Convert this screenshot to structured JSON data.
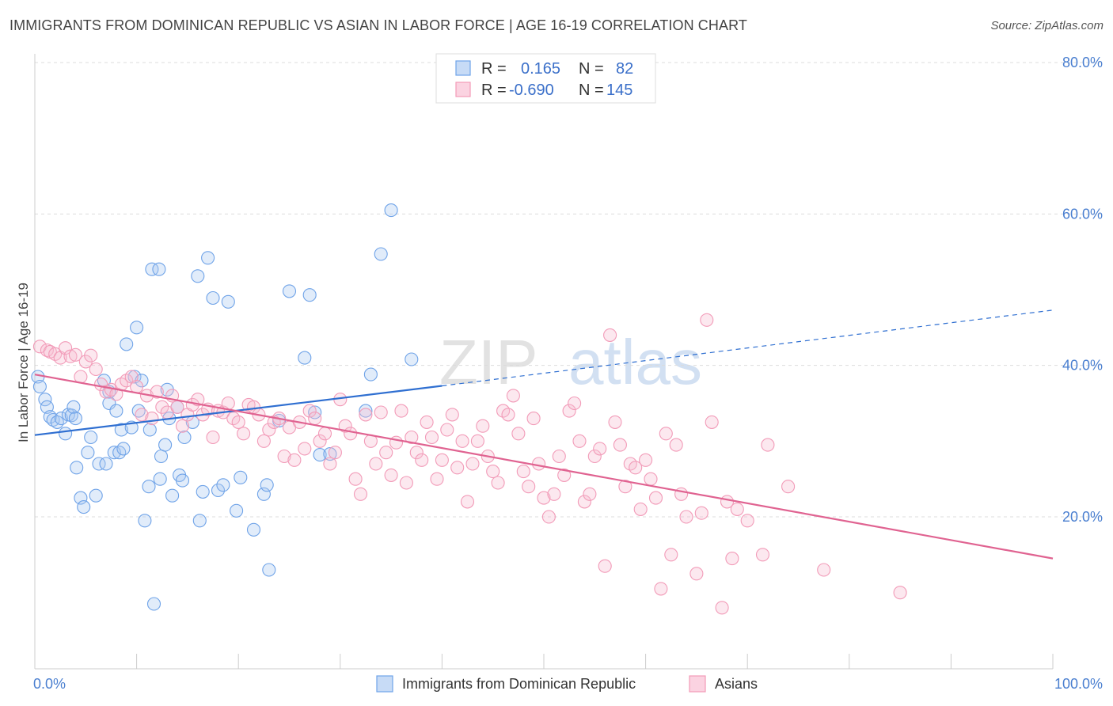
{
  "header": {
    "title": "IMMIGRANTS FROM DOMINICAN REPUBLIC VS ASIAN IN LABOR FORCE | AGE 16-19 CORRELATION CHART",
    "source": "Source: ZipAtlas.com"
  },
  "watermark": {
    "zip": "ZIP",
    "atlas": "atlas"
  },
  "legend": {
    "rows": [
      {
        "r_label": "R =",
        "r_value": "0.165",
        "n_label": "N =",
        "n_value": "82"
      },
      {
        "r_label": "R =",
        "r_value": "-0.690",
        "n_label": "N =",
        "n_value": "145"
      }
    ]
  },
  "bottom_legend": {
    "items": [
      "Immigrants from Dominican Republic",
      "Asians"
    ]
  },
  "chart_data": {
    "type": "scatter",
    "ylabel": "In Labor Force | Age 16-19",
    "xlabel": "",
    "xlim": [
      0,
      100
    ],
    "ylim": [
      0,
      85
    ],
    "x_tick_labels": [
      "0.0%",
      "100.0%"
    ],
    "y_ticks": [
      20,
      40,
      60,
      80
    ],
    "y_tick_labels": [
      "20.0%",
      "40.0%",
      "60.0%",
      "80.0%"
    ],
    "grid": true,
    "legend_position": "top-center",
    "colors": {
      "blue": "#6fa3e8",
      "blue_line": "#2f6fd1",
      "pink": "#f29bb8",
      "pink_line": "#e06391"
    },
    "series": [
      {
        "name": "Immigrants from Dominican Republic",
        "color": "#6fa3e8",
        "trend": {
          "x": [
            0,
            40
          ],
          "y": [
            30.8,
            37.3
          ],
          "dashed_extension_to": [
            100,
            47.3
          ]
        },
        "points": [
          [
            0.3,
            38.5
          ],
          [
            0.5,
            37.2
          ],
          [
            1.0,
            35.5
          ],
          [
            1.2,
            34.5
          ],
          [
            1.5,
            33.2
          ],
          [
            1.8,
            32.8
          ],
          [
            2.2,
            32.5
          ],
          [
            2.6,
            33.0
          ],
          [
            3.0,
            31.0
          ],
          [
            3.3,
            33.5
          ],
          [
            3.6,
            33.4
          ],
          [
            3.8,
            34.5
          ],
          [
            4.0,
            33.0
          ],
          [
            4.1,
            26.5
          ],
          [
            4.5,
            22.5
          ],
          [
            4.8,
            21.3
          ],
          [
            5.2,
            28.5
          ],
          [
            5.5,
            30.5
          ],
          [
            6.0,
            22.8
          ],
          [
            6.3,
            27.0
          ],
          [
            6.8,
            38.0
          ],
          [
            7.0,
            27.0
          ],
          [
            7.3,
            36.5
          ],
          [
            7.3,
            35.0
          ],
          [
            7.8,
            28.5
          ],
          [
            8.0,
            34.0
          ],
          [
            8.3,
            28.5
          ],
          [
            8.5,
            31.5
          ],
          [
            8.7,
            29.0
          ],
          [
            9.0,
            42.8
          ],
          [
            9.5,
            31.8
          ],
          [
            9.8,
            38.5
          ],
          [
            10.0,
            45.0
          ],
          [
            10.2,
            34.0
          ],
          [
            10.5,
            38.0
          ],
          [
            10.8,
            19.5
          ],
          [
            11.2,
            24.0
          ],
          [
            11.3,
            31.5
          ],
          [
            11.5,
            52.7
          ],
          [
            11.7,
            8.5
          ],
          [
            12.2,
            52.7
          ],
          [
            12.3,
            25.0
          ],
          [
            12.4,
            28.0
          ],
          [
            12.8,
            29.5
          ],
          [
            13.0,
            36.8
          ],
          [
            13.2,
            33.0
          ],
          [
            13.5,
            22.8
          ],
          [
            14.0,
            34.5
          ],
          [
            14.2,
            25.5
          ],
          [
            14.5,
            24.8
          ],
          [
            14.7,
            30.5
          ],
          [
            15.5,
            32.5
          ],
          [
            16.0,
            51.8
          ],
          [
            16.2,
            19.5
          ],
          [
            16.5,
            23.3
          ],
          [
            17.0,
            54.2
          ],
          [
            17.5,
            48.9
          ],
          [
            18.0,
            23.5
          ],
          [
            18.5,
            24.2
          ],
          [
            19.0,
            48.4
          ],
          [
            19.8,
            20.8
          ],
          [
            20.2,
            25.2
          ],
          [
            21.5,
            18.3
          ],
          [
            22.5,
            23.0
          ],
          [
            22.8,
            24.2
          ],
          [
            23.0,
            13.0
          ],
          [
            24.0,
            32.7
          ],
          [
            25.0,
            49.8
          ],
          [
            26.5,
            41.0
          ],
          [
            27.0,
            49.3
          ],
          [
            27.5,
            33.8
          ],
          [
            28.0,
            28.2
          ],
          [
            29.0,
            28.3
          ],
          [
            32.5,
            34.0
          ],
          [
            33.0,
            38.8
          ],
          [
            34.0,
            54.7
          ],
          [
            35.0,
            60.5
          ],
          [
            37.0,
            40.8
          ]
        ]
      },
      {
        "name": "Asians",
        "color": "#f29bb8",
        "trend": {
          "x": [
            0,
            100
          ],
          "y": [
            38.8,
            14.5
          ]
        },
        "points": [
          [
            0.5,
            42.5
          ],
          [
            1.2,
            42.0
          ],
          [
            1.5,
            41.8
          ],
          [
            2.0,
            41.5
          ],
          [
            2.5,
            41.0
          ],
          [
            3.0,
            42.3
          ],
          [
            3.5,
            41.2
          ],
          [
            4.0,
            41.4
          ],
          [
            4.5,
            38.5
          ],
          [
            5.0,
            40.5
          ],
          [
            5.5,
            41.3
          ],
          [
            6.0,
            39.5
          ],
          [
            6.5,
            37.5
          ],
          [
            7.0,
            36.5
          ],
          [
            7.5,
            36.8
          ],
          [
            8.0,
            36.2
          ],
          [
            8.5,
            37.5
          ],
          [
            9.0,
            38.0
          ],
          [
            9.5,
            38.5
          ],
          [
            10.0,
            37.2
          ],
          [
            10.5,
            33.5
          ],
          [
            11.0,
            36.0
          ],
          [
            11.5,
            33.0
          ],
          [
            12.0,
            36.5
          ],
          [
            12.5,
            34.5
          ],
          [
            13.0,
            33.8
          ],
          [
            13.5,
            36.0
          ],
          [
            14.0,
            34.5
          ],
          [
            14.5,
            32.0
          ],
          [
            15.0,
            33.5
          ],
          [
            15.5,
            34.8
          ],
          [
            16.0,
            35.5
          ],
          [
            16.5,
            33.5
          ],
          [
            17.0,
            34.2
          ],
          [
            17.5,
            30.5
          ],
          [
            18.0,
            34.0
          ],
          [
            18.5,
            33.8
          ],
          [
            19.0,
            35.0
          ],
          [
            19.5,
            33.0
          ],
          [
            20.0,
            32.5
          ],
          [
            20.5,
            31.0
          ],
          [
            21.0,
            34.8
          ],
          [
            21.5,
            34.5
          ],
          [
            22.0,
            33.5
          ],
          [
            22.5,
            30.0
          ],
          [
            23.0,
            31.5
          ],
          [
            23.5,
            32.5
          ],
          [
            24.0,
            33.0
          ],
          [
            24.5,
            28.0
          ],
          [
            25.0,
            31.8
          ],
          [
            25.5,
            27.5
          ],
          [
            26.0,
            32.5
          ],
          [
            26.5,
            29.0
          ],
          [
            27.0,
            34.0
          ],
          [
            27.5,
            33.0
          ],
          [
            28.0,
            30.0
          ],
          [
            28.5,
            31.0
          ],
          [
            29.0,
            27.0
          ],
          [
            29.5,
            28.5
          ],
          [
            30.0,
            35.5
          ],
          [
            30.5,
            32.0
          ],
          [
            31.0,
            31.0
          ],
          [
            31.5,
            25.0
          ],
          [
            32.0,
            23.0
          ],
          [
            32.5,
            33.5
          ],
          [
            33.0,
            30.0
          ],
          [
            33.5,
            27.0
          ],
          [
            34.0,
            33.8
          ],
          [
            34.5,
            28.5
          ],
          [
            35.0,
            25.5
          ],
          [
            35.5,
            29.8
          ],
          [
            36.0,
            34.0
          ],
          [
            36.5,
            24.5
          ],
          [
            37.0,
            30.5
          ],
          [
            37.5,
            28.5
          ],
          [
            38.0,
            27.5
          ],
          [
            38.5,
            32.5
          ],
          [
            39.0,
            30.5
          ],
          [
            39.5,
            25.0
          ],
          [
            40.0,
            27.5
          ],
          [
            40.5,
            31.5
          ],
          [
            41.0,
            33.5
          ],
          [
            41.5,
            26.5
          ],
          [
            42.0,
            30.0
          ],
          [
            42.5,
            22.0
          ],
          [
            43.0,
            27.0
          ],
          [
            43.5,
            30.0
          ],
          [
            44.0,
            32.0
          ],
          [
            44.5,
            28.0
          ],
          [
            45.0,
            26.0
          ],
          [
            45.5,
            24.5
          ],
          [
            46.0,
            34.0
          ],
          [
            46.5,
            33.5
          ],
          [
            47.0,
            36.0
          ],
          [
            47.5,
            31.0
          ],
          [
            48.0,
            26.0
          ],
          [
            48.5,
            24.0
          ],
          [
            49.0,
            33.0
          ],
          [
            49.5,
            27.0
          ],
          [
            50.0,
            22.5
          ],
          [
            50.5,
            20.0
          ],
          [
            51.0,
            23.0
          ],
          [
            51.5,
            28.0
          ],
          [
            52.0,
            25.5
          ],
          [
            52.5,
            34.0
          ],
          [
            53.0,
            35.0
          ],
          [
            53.5,
            30.0
          ],
          [
            54.0,
            22.0
          ],
          [
            54.5,
            23.0
          ],
          [
            55.0,
            28.0
          ],
          [
            55.5,
            29.0
          ],
          [
            56.0,
            13.5
          ],
          [
            56.5,
            44.0
          ],
          [
            57.0,
            32.5
          ],
          [
            57.5,
            29.5
          ],
          [
            58.0,
            24.0
          ],
          [
            58.5,
            27.0
          ],
          [
            59.0,
            26.5
          ],
          [
            59.5,
            21.0
          ],
          [
            60.0,
            27.5
          ],
          [
            60.5,
            25.0
          ],
          [
            61.0,
            22.5
          ],
          [
            61.5,
            10.5
          ],
          [
            62.0,
            31.0
          ],
          [
            62.5,
            15.0
          ],
          [
            63.0,
            29.5
          ],
          [
            63.5,
            23.0
          ],
          [
            64.0,
            20.0
          ],
          [
            65.0,
            12.5
          ],
          [
            65.5,
            20.5
          ],
          [
            66.0,
            46.0
          ],
          [
            66.5,
            32.5
          ],
          [
            67.5,
            8.0
          ],
          [
            68.0,
            22.0
          ],
          [
            68.5,
            14.5
          ],
          [
            69.0,
            21.0
          ],
          [
            70.0,
            19.5
          ],
          [
            71.5,
            15.0
          ],
          [
            72.0,
            29.5
          ],
          [
            74.0,
            24.0
          ],
          [
            77.5,
            13.0
          ],
          [
            85.0,
            10.0
          ]
        ]
      }
    ]
  }
}
